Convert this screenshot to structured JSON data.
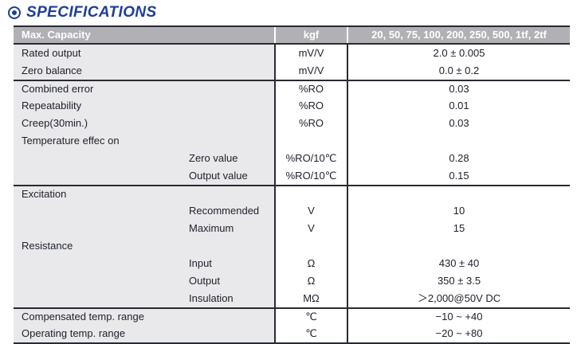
{
  "page_title": "SPECIFICATIONS",
  "colors": {
    "accent_blue": "#1d3e97",
    "header_bg": "#b1b1b5",
    "header_text": "#ffffff",
    "label_column_bg": "#e9e9eb",
    "border_dark": "#2a2a32",
    "body_text": "#20232e"
  },
  "table": {
    "header": {
      "capacity_label": "Max. Capacity",
      "unit_label": "kgf",
      "capacity_values": "20, 50, 75, 100, 200, 250, 500, 1tf, 2tf"
    },
    "rows": [
      {
        "label": "Rated output",
        "indent": false,
        "section_start": false,
        "unit": "mV/V",
        "value": "2.0 ± 0.005"
      },
      {
        "label": "Zero balance",
        "indent": false,
        "section_start": false,
        "unit": "mV/V",
        "value": "0.0 ± 0.2"
      },
      {
        "label": "Combined error",
        "indent": false,
        "section_start": true,
        "unit": "%RO",
        "value": "0.03"
      },
      {
        "label": "Repeatability",
        "indent": false,
        "section_start": false,
        "unit": "%RO",
        "value": "0.01"
      },
      {
        "label": "Creep(30min.)",
        "indent": false,
        "section_start": false,
        "unit": "%RO",
        "value": "0.03"
      },
      {
        "label": "Temperature effec on",
        "indent": false,
        "section_start": false,
        "unit": "",
        "value": ""
      },
      {
        "label": "Zero value",
        "indent": true,
        "section_start": false,
        "unit": "%RO/10℃",
        "value": "0.28"
      },
      {
        "label": "Output value",
        "indent": true,
        "section_start": false,
        "unit": "%RO/10℃",
        "value": "0.15"
      },
      {
        "label": "Excitation",
        "indent": false,
        "section_start": true,
        "unit": "",
        "value": ""
      },
      {
        "label": "Recommended",
        "indent": true,
        "section_start": false,
        "unit": "V",
        "value": "10"
      },
      {
        "label": "Maximum",
        "indent": true,
        "section_start": false,
        "unit": "V",
        "value": "15"
      },
      {
        "label": "Resistance",
        "indent": false,
        "section_start": false,
        "unit": "",
        "value": ""
      },
      {
        "label": "Input",
        "indent": true,
        "section_start": false,
        "unit": "Ω",
        "value": "430 ± 40"
      },
      {
        "label": "Output",
        "indent": true,
        "section_start": false,
        "unit": "Ω",
        "value": "350 ± 3.5"
      },
      {
        "label": "Insulation",
        "indent": true,
        "section_start": false,
        "unit": "MΩ",
        "value": "＞2,000@50V DC"
      },
      {
        "label": "Compensated temp. range",
        "indent": false,
        "section_start": true,
        "unit": "℃",
        "value": "−10 ~ +40"
      },
      {
        "label": "Operating temp. range",
        "indent": false,
        "section_start": false,
        "unit": "℃",
        "value": "−20 ~ +80"
      }
    ]
  }
}
